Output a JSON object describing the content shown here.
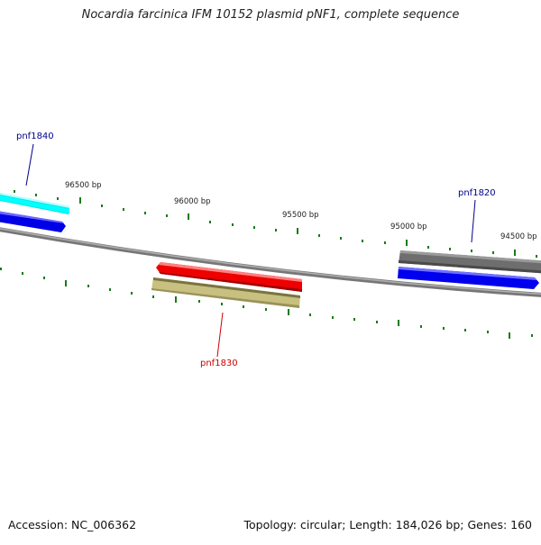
{
  "title": "Nocardia farcinica IFM 10152 plasmid pNF1, complete sequence",
  "accession": "Accession: NC_006362",
  "summary": "Topology: circular; Length: 184,026 bp; Genes: 160",
  "colors": {
    "backbone": "#808080",
    "ticks": "#1a7a1a",
    "gene_label_blue": "#00008b",
    "gene_label_red": "#cc0000"
  },
  "tick_labels": [
    "96500 bp",
    "96000 bp",
    "95500 bp",
    "95000 bp",
    "94500 bp"
  ],
  "gene_labels": [
    {
      "name": "pnf1840",
      "color": "#00008b"
    },
    {
      "name": "pnf1820",
      "color": "#00008b"
    },
    {
      "name": "pnf1830",
      "color": "#cc0000"
    }
  ],
  "features": [
    {
      "name": "cyan-feature",
      "color": "#00ffff"
    },
    {
      "name": "blue-feature-left",
      "color": "#0000ff"
    },
    {
      "name": "red-feature",
      "color": "#ff0000"
    },
    {
      "name": "olive-feature",
      "color": "#c8c080"
    },
    {
      "name": "gray-feature",
      "color": "#6e6e6e"
    },
    {
      "name": "blue-feature-right",
      "color": "#0000ff"
    }
  ]
}
